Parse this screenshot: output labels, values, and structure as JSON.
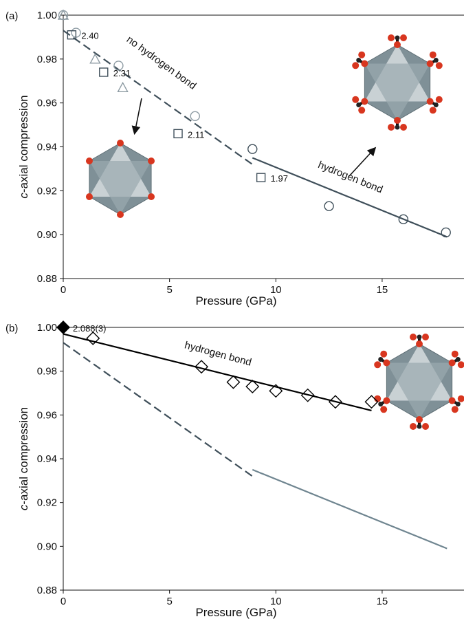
{
  "chart_data": [
    {
      "type": "scatter",
      "panel_label": "(a)",
      "xlabel": "Pressure (GPa)",
      "ylabel": [
        "c",
        "-axial compression"
      ],
      "xlim": [
        0,
        18.85
      ],
      "ylim": [
        0.88,
        1.0
      ],
      "xticks": [
        0,
        5,
        10,
        15
      ],
      "yticks": [
        {
          "value": 0.88,
          "label": "0.88"
        },
        {
          "value": 0.9,
          "label": "0.90"
        },
        {
          "value": 0.92,
          "label": "0.92"
        },
        {
          "value": 0.94,
          "label": "0.94"
        },
        {
          "value": 0.96,
          "label": "0.96"
        },
        {
          "value": 0.98,
          "label": "0.98"
        },
        {
          "value": 1.0,
          "label": "1.00"
        }
      ],
      "annotations": [
        "no hydrogen bond",
        "hydrogen bond"
      ],
      "series": [
        {
          "type": "line",
          "style": "dashed",
          "color": "#3f4f5a",
          "x": [
            0,
            8.9
          ],
          "values": [
            0.993,
            0.932
          ]
        },
        {
          "type": "line",
          "style": "solid",
          "color": "#3f4f5a",
          "x": [
            8.9,
            18.05
          ],
          "values": [
            0.935,
            0.899
          ]
        },
        {
          "type": "scatter",
          "marker": "triangle",
          "color": "#8d9ba3",
          "x": [
            0,
            1.5,
            2.8
          ],
          "values": [
            1.0,
            0.98,
            0.967
          ]
        },
        {
          "type": "scatter",
          "marker": "circle",
          "color": "#8d9ba3",
          "x": [
            0,
            0.6,
            2.6,
            6.2
          ],
          "values": [
            1.0,
            0.992,
            0.977,
            0.954
          ]
        },
        {
          "type": "scatter",
          "marker": "circle",
          "color": "#3f4f5a",
          "x": [
            8.9,
            12.5,
            16,
            18
          ],
          "values": [
            0.939,
            0.913,
            0.907,
            0.901
          ]
        },
        {
          "type": "scatter",
          "marker": "square",
          "color": "#3f4f5a",
          "x": [
            0.4,
            1.9,
            5.4,
            9.3
          ],
          "values": [
            0.991,
            0.974,
            0.946,
            0.926
          ],
          "labels": [
            "2.40",
            "2.31",
            "2.11",
            "1.97"
          ]
        }
      ]
    },
    {
      "type": "scatter",
      "panel_label": "(b)",
      "xlabel": "Pressure (GPa)",
      "ylabel": [
        "c",
        "-axial compression"
      ],
      "xlim": [
        0,
        18.85
      ],
      "ylim": [
        0.88,
        1.0
      ],
      "xticks": [
        0,
        5,
        10,
        15
      ],
      "yticks": [
        {
          "value": 0.88,
          "label": "0.88"
        },
        {
          "value": 0.9,
          "label": "0.90"
        },
        {
          "value": 0.92,
          "label": "0.92"
        },
        {
          "value": 0.94,
          "label": "0.94"
        },
        {
          "value": 0.96,
          "label": "0.96"
        },
        {
          "value": 0.98,
          "label": "0.98"
        },
        {
          "value": 1.0,
          "label": "1.00"
        }
      ],
      "annotations": [
        "hydrogen bond"
      ],
      "series": [
        {
          "type": "line",
          "style": "dashed",
          "color": "#3f4f5a",
          "x": [
            0,
            8.9
          ],
          "values": [
            0.993,
            0.932
          ]
        },
        {
          "type": "line",
          "style": "solid",
          "color": "#6f8590",
          "x": [
            8.9,
            18.05
          ],
          "values": [
            0.935,
            0.899
          ]
        },
        {
          "type": "line",
          "style": "solid",
          "color": "#000000",
          "x": [
            0,
            14.5
          ],
          "values": [
            0.997,
            0.962
          ]
        },
        {
          "type": "scatter",
          "marker": "diamond",
          "color": "#000000",
          "x": [
            1.4,
            6.5,
            8.0,
            8.9,
            10.0,
            11.5,
            12.8,
            14.5
          ],
          "values": [
            0.995,
            0.982,
            0.975,
            0.973,
            0.971,
            0.969,
            0.966,
            0.966
          ]
        },
        {
          "type": "scatter",
          "marker": "diamond",
          "filled": true,
          "color": "#000000",
          "x": [
            0
          ],
          "values": [
            1.0
          ],
          "labels": [
            "2.088(3)"
          ]
        }
      ]
    }
  ]
}
